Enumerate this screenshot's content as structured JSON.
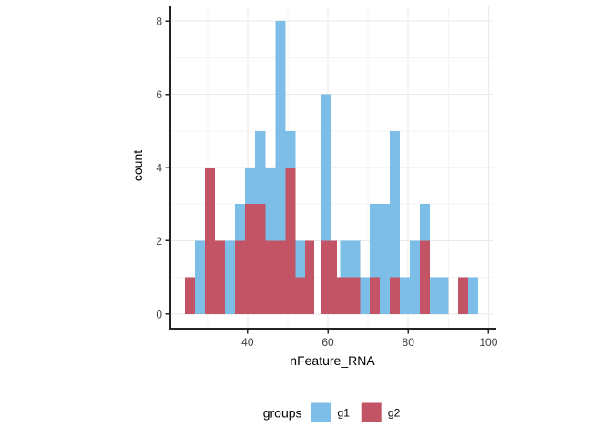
{
  "chart_data": {
    "type": "histogram",
    "title": "",
    "xlabel": "nFeature_RNA",
    "ylabel": "count",
    "xlim": [
      20.75,
      101.05
    ],
    "ylim": [
      -0.4,
      8.4
    ],
    "x_ticks": [
      40,
      60,
      80,
      100
    ],
    "y_ticks": [
      0,
      2,
      4,
      6,
      8
    ],
    "x_minor_ticks": [
      30,
      50,
      70,
      90
    ],
    "y_minor_ticks": [
      1,
      3,
      5,
      7
    ],
    "grid": "major+minor, light grey on white panel",
    "binwidth_approx": 2.5,
    "overlay": "g2 bars drawn in front of g1 bars (position identity)",
    "legend": {
      "title": "groups",
      "position": "bottom",
      "entries": [
        {
          "label": "g1",
          "color": "#7DBEE8"
        },
        {
          "label": "g2",
          "color": "#C25465"
        }
      ]
    },
    "bins": [
      {
        "x0": 24.4,
        "x1": 26.9,
        "g1": 0,
        "g2": 1
      },
      {
        "x0": 26.9,
        "x1": 29.4,
        "g1": 2,
        "g2": 0
      },
      {
        "x0": 29.4,
        "x1": 31.9,
        "g1": 0,
        "g2": 4
      },
      {
        "x0": 31.9,
        "x1": 34.4,
        "g1": 0,
        "g2": 2
      },
      {
        "x0": 34.4,
        "x1": 36.9,
        "g1": 2,
        "g2": 0
      },
      {
        "x0": 36.9,
        "x1": 39.4,
        "g1": 3,
        "g2": 2
      },
      {
        "x0": 39.4,
        "x1": 41.9,
        "g1": 4,
        "g2": 3
      },
      {
        "x0": 41.9,
        "x1": 44.4,
        "g1": 5,
        "g2": 3
      },
      {
        "x0": 44.4,
        "x1": 46.9,
        "g1": 4,
        "g2": 2
      },
      {
        "x0": 46.9,
        "x1": 49.4,
        "g1": 8,
        "g2": 2
      },
      {
        "x0": 49.4,
        "x1": 51.9,
        "g1": 5,
        "g2": 4
      },
      {
        "x0": 51.9,
        "x1": 54.3,
        "g1": 2,
        "g2": 1
      },
      {
        "x0": 54.3,
        "x1": 56.6,
        "g1": 0,
        "g2": 2
      },
      {
        "x0": 58.2,
        "x1": 60.7,
        "g1": 6,
        "g2": 2
      },
      {
        "x0": 60.7,
        "x1": 62.3,
        "g1": 0,
        "g2": 2
      },
      {
        "x0": 62.3,
        "x1": 63.1,
        "g1": 0,
        "g2": 1
      },
      {
        "x0": 63.1,
        "x1": 65.6,
        "g1": 2,
        "g2": 1
      },
      {
        "x0": 65.6,
        "x1": 68.0,
        "g1": 2,
        "g2": 1
      },
      {
        "x0": 68.0,
        "x1": 70.4,
        "g1": 1,
        "g2": 0
      },
      {
        "x0": 70.4,
        "x1": 72.9,
        "g1": 3,
        "g2": 1
      },
      {
        "x0": 72.9,
        "x1": 75.4,
        "g1": 3,
        "g2": 0
      },
      {
        "x0": 75.4,
        "x1": 77.9,
        "g1": 5,
        "g2": 1
      },
      {
        "x0": 77.9,
        "x1": 80.4,
        "g1": 1,
        "g2": 0
      },
      {
        "x0": 80.4,
        "x1": 82.9,
        "g1": 2,
        "g2": 0
      },
      {
        "x0": 82.9,
        "x1": 85.4,
        "g1": 3,
        "g2": 2
      },
      {
        "x0": 85.4,
        "x1": 87.8,
        "g1": 1,
        "g2": 0
      },
      {
        "x0": 87.8,
        "x1": 90.1,
        "g1": 1,
        "g2": 0
      },
      {
        "x0": 92.4,
        "x1": 94.9,
        "g1": 0,
        "g2": 1
      },
      {
        "x0": 94.9,
        "x1": 97.4,
        "g1": 1,
        "g2": 0
      }
    ]
  },
  "colors": {
    "background": "#FFFFFF",
    "grid_major": "#E9E9E9",
    "grid_minor": "#F4F4F4",
    "axis_line": "#222222",
    "tick_label": "#404040",
    "axis_title": "#000000"
  }
}
